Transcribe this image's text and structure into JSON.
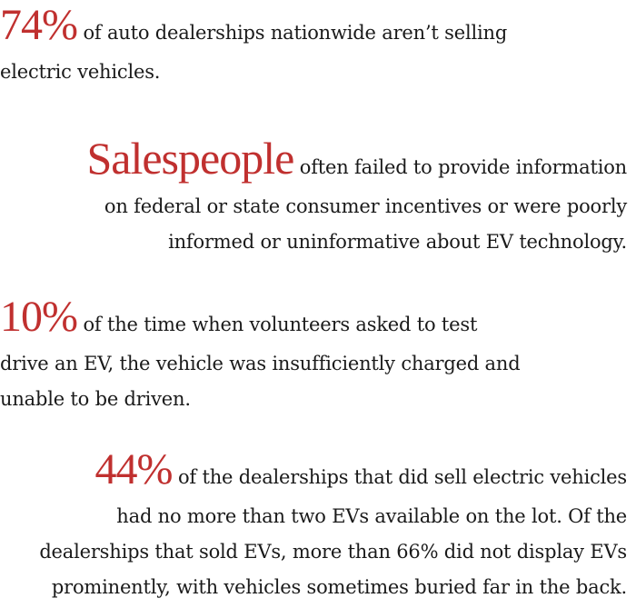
{
  "colors": {
    "accent": "#c0302f",
    "text": "#1a1a1a",
    "background": "#ffffff"
  },
  "stats": [
    {
      "highlight": "74%",
      "lines": [
        " of auto dealerships nationwide aren’t selling",
        "electric vehicles."
      ]
    },
    {
      "highlight": "Salespeople",
      "lines": [
        " often failed to provide information",
        "on federal or state consumer incentives or were poorly",
        "informed or uninformative about EV technology."
      ]
    },
    {
      "highlight": "10%",
      "lines": [
        " of the time when volunteers asked to test",
        "drive an EV, the vehicle was insufficiently charged and",
        "unable to be driven."
      ]
    },
    {
      "highlight": "44%",
      "lines": [
        " of the dealerships that did sell electric vehicles",
        "had no more than two EVs available on the lot. Of the",
        "dealerships that sold EVs, more than 66% did not display EVs",
        "prominently, with vehicles sometimes buried far in the back."
      ]
    }
  ]
}
